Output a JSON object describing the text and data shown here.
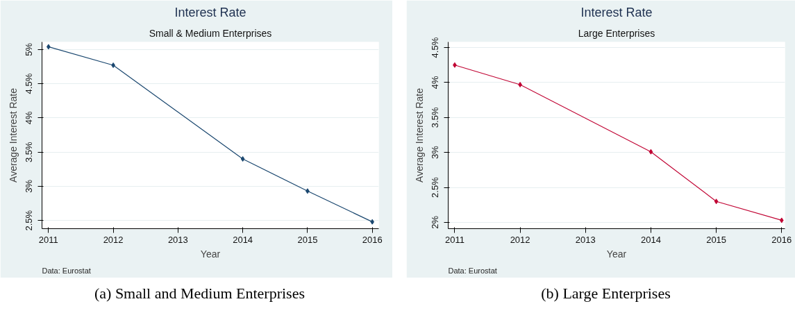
{
  "chart_data": [
    {
      "type": "line",
      "title": "Interest Rate",
      "subtitle": "Small & Medium Enterprises",
      "xlabel": "Year",
      "ylabel": "Average Interest Rate",
      "annotations": [
        "Data: Eurostat",
        "(a) Small and Medium Enterprises"
      ],
      "x": [
        2011,
        2012,
        2014,
        2015,
        2016
      ],
      "series": [
        {
          "color": "#1a476f",
          "values": [
            5.04,
            4.77,
            3.4,
            2.93,
            2.48
          ]
        }
      ],
      "xlim": [
        2010.9,
        2016.1
      ],
      "xticks": [
        2011,
        2012,
        2013,
        2014,
        2015,
        2016
      ],
      "ylim": [
        2.38,
        5.11
      ],
      "yticks": [
        {
          "value": 2.5,
          "label": "2.5%"
        },
        {
          "value": 3,
          "label": "3%"
        },
        {
          "value": 3.5,
          "label": "3.5%"
        },
        {
          "value": 4,
          "label": "4%"
        },
        {
          "value": 4.5,
          "label": "4.5%"
        },
        {
          "value": 5,
          "label": "5%"
        }
      ],
      "grid": "y",
      "marker": "diamond",
      "line_style": "solid"
    },
    {
      "type": "line",
      "title": "Interest Rate",
      "subtitle": "Large Enterprises",
      "xlabel": "Year",
      "ylabel": "Average Interest Rate",
      "annotations": [
        "Data: Eurostat",
        "(b) Large Enterprises"
      ],
      "x": [
        2011,
        2012,
        2014,
        2015,
        2016
      ],
      "series": [
        {
          "color": "#c10534",
          "values": [
            4.25,
            3.97,
            3.01,
            2.3,
            2.03
          ]
        }
      ],
      "xlim": [
        2010.9,
        2016.05
      ],
      "xticks": [
        2011,
        2012,
        2013,
        2014,
        2015,
        2016
      ],
      "ylim": [
        1.91,
        4.58
      ],
      "yticks": [
        {
          "value": 2,
          "label": "2%"
        },
        {
          "value": 2.5,
          "label": "2.5%"
        },
        {
          "value": 3,
          "label": "3%"
        },
        {
          "value": 3.5,
          "label": "3.5%"
        },
        {
          "value": 4,
          "label": "4%"
        },
        {
          "value": 4.5,
          "label": "4.5%"
        }
      ],
      "grid": "y",
      "marker": "diamond",
      "line_style": "solid"
    }
  ]
}
